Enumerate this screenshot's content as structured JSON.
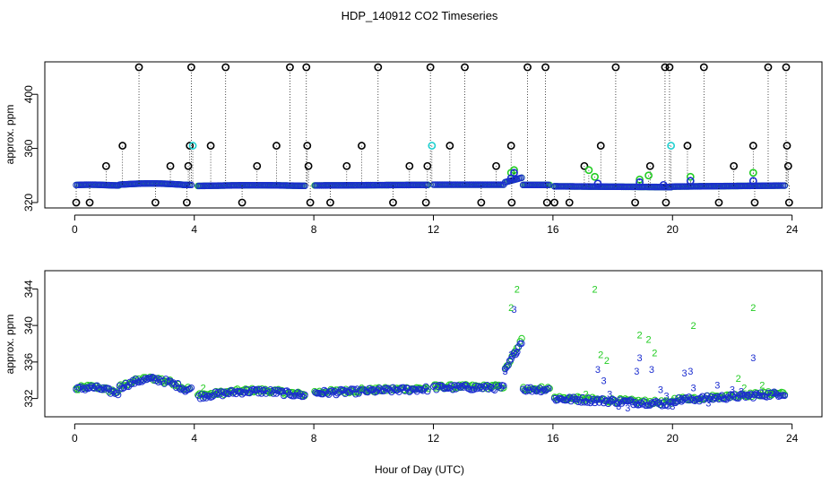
{
  "colors": {
    "background": "#ffffff",
    "axis": "#000000",
    "series_1": "#000000",
    "series_2": "#22cc22",
    "series_3": "#1a2ccf",
    "highlight": "#20d0d0"
  },
  "chart_data": [
    {
      "type": "scatter",
      "title": "HDP_140912  CO2 Timeseries",
      "xlabel": "",
      "ylabel": "approx. ppm",
      "xlim": [
        -1,
        25
      ],
      "ylim": [
        316,
        424
      ],
      "xticks": [
        0,
        4,
        8,
        12,
        16,
        20,
        24
      ],
      "xtick_labels": [
        "0",
        "4",
        "8",
        "12",
        "16",
        "20",
        "24"
      ],
      "yticks": [
        320,
        360,
        400
      ],
      "ytick_labels": [
        "320",
        "360",
        "400"
      ],
      "series": [
        {
          "name": "1",
          "color": "#000000",
          "x": [
            0.05,
            0.5,
            1.05,
            1.6,
            2.15,
            2.7,
            3.2,
            3.75,
            3.8,
            3.85,
            3.9,
            4.55,
            5.05,
            5.6,
            6.1,
            6.75,
            7.2,
            7.75,
            7.78,
            7.82,
            7.88,
            8.55,
            9.1,
            9.6,
            10.15,
            10.65,
            11.2,
            11.75,
            11.8,
            11.9,
            12.55,
            13.05,
            13.6,
            14.1,
            14.6,
            14.62,
            15.15,
            15.75,
            15.8,
            16.05,
            16.55,
            17.05,
            17.6,
            18.1,
            18.75,
            19.25,
            19.75,
            19.78,
            19.9,
            20.5,
            21.05,
            21.55,
            22.05,
            22.7,
            22.75,
            23.2,
            23.8,
            23.83,
            23.87,
            23.9
          ],
          "y": [
            320,
            320,
            347,
            362,
            420,
            320,
            347,
            320,
            347,
            362,
            420,
            362,
            420,
            320,
            347,
            362,
            420,
            420,
            362,
            347,
            320,
            320,
            347,
            362,
            420,
            320,
            347,
            320,
            347,
            420,
            362,
            420,
            320,
            347,
            362,
            320,
            420,
            420,
            320,
            320,
            320,
            347,
            362,
            420,
            320,
            347,
            420,
            320,
            420,
            362,
            420,
            320,
            347,
            362,
            320,
            420,
            420,
            362,
            347,
            320
          ]
        },
        {
          "name": "2",
          "color": "#22cc22",
          "x": [
            14.6,
            14.7,
            17.2,
            17.4,
            18.9,
            19.2,
            20.6,
            22.7
          ],
          "y": [
            342,
            344,
            344,
            339,
            337,
            340,
            339,
            342
          ]
        },
        {
          "name": "3",
          "color": "#1a2ccf",
          "x": [
            14.6,
            14.7,
            17.5,
            18.9,
            19.7,
            20.6,
            22.7
          ],
          "y": [
            338,
            342,
            334,
            335,
            333,
            336,
            336
          ]
        },
        {
          "name": "highlight",
          "color": "#20d0d0",
          "x": [
            3.95,
            11.95,
            19.95
          ],
          "y": [
            362,
            362,
            362
          ]
        }
      ]
    },
    {
      "type": "scatter",
      "title": "",
      "xlabel": "Hour of Day (UTC)",
      "ylabel": "approx. ppm",
      "xlim": [
        -1,
        25
      ],
      "ylim": [
        330,
        346
      ],
      "xticks": [
        0,
        4,
        8,
        12,
        16,
        20,
        24
      ],
      "xtick_labels": [
        "0",
        "4",
        "8",
        "12",
        "16",
        "20",
        "24"
      ],
      "yticks": [
        332,
        336,
        340,
        344
      ],
      "ytick_labels": [
        "332",
        "336",
        "340",
        "344"
      ],
      "series": [
        {
          "name": "2",
          "color": "#22cc22",
          "x": [
            0.1,
            3.0,
            4.3,
            6.5,
            9.6,
            12.1,
            14.1,
            14.6,
            14.8,
            17.1,
            17.4,
            17.6,
            17.8,
            18.9,
            19.2,
            19.4,
            20.7,
            22.2,
            22.4,
            22.7,
            23.0,
            23.3
          ],
          "y": [
            333.0,
            333.8,
            333.2,
            332.8,
            333.2,
            333.2,
            333.5,
            342.0,
            344.0,
            332.5,
            344.0,
            336.8,
            336.2,
            339.0,
            338.5,
            337.0,
            340.0,
            334.2,
            333.2,
            342.0,
            333.5,
            332.5
          ]
        },
        {
          "name": "3",
          "color": "#1a2ccf",
          "x": [
            14.4,
            14.6,
            14.7,
            14.8,
            17.5,
            17.7,
            17.9,
            18.2,
            18.5,
            18.8,
            18.9,
            19.3,
            19.6,
            19.8,
            20.0,
            20.3,
            20.4,
            20.6,
            20.7,
            20.9,
            21.2,
            21.5,
            22.0,
            22.3,
            22.7
          ],
          "y": [
            335.0,
            336.8,
            341.8,
            337.0,
            335.2,
            334.0,
            332.5,
            331.2,
            331.0,
            335.0,
            336.5,
            335.2,
            333.0,
            332.3,
            331.2,
            332.0,
            334.8,
            335.0,
            333.2,
            332.0,
            331.5,
            333.5,
            333.0,
            332.8,
            336.5
          ]
        }
      ]
    }
  ],
  "layout_labels": {
    "title": "HDP_140912  CO2 Timeseries",
    "xlabel": "Hour of Day (UTC)"
  }
}
